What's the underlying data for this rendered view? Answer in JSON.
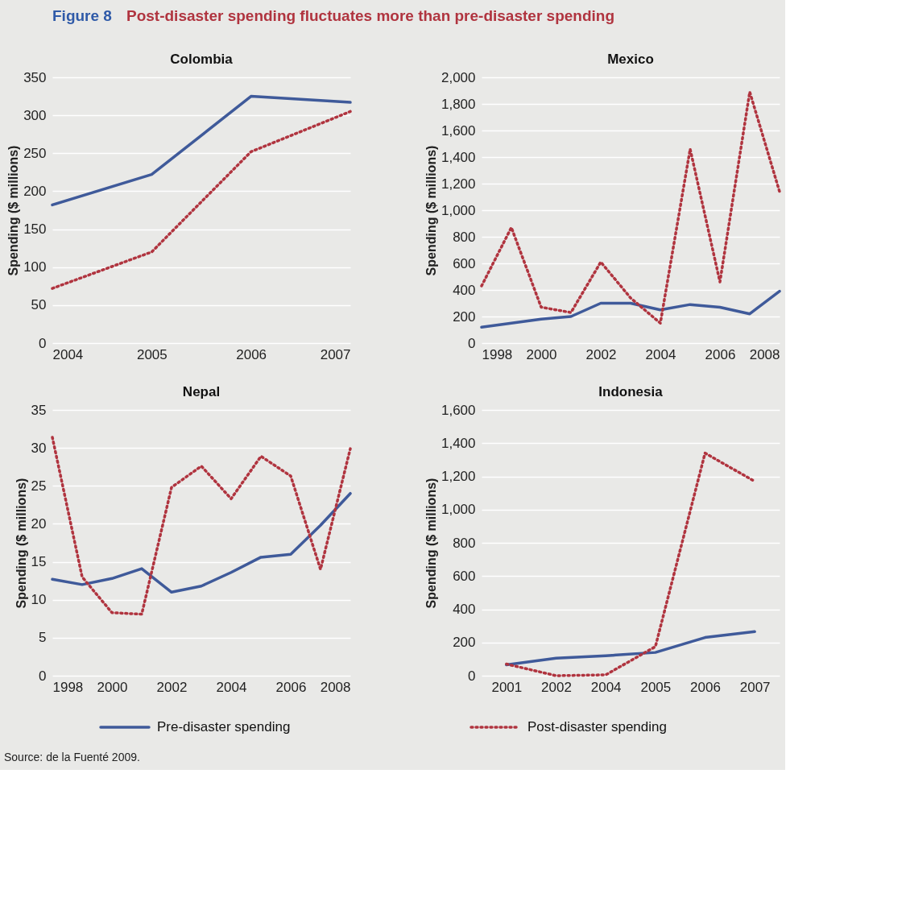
{
  "chart_data": [
    {
      "type": "other",
      "title": "Figure 8",
      "subtitle": "Post-disaster spending fluctuates more than pre-disaster spending"
    },
    {
      "type": "line",
      "title": "Colombia",
      "ylabel": "Spending ($ millions)",
      "x": [
        2004,
        2005,
        2006,
        2007
      ],
      "xlim": [
        2004,
        2007
      ],
      "xticks": [
        2004,
        2005,
        2006,
        2007
      ],
      "ylim": [
        0,
        350
      ],
      "yticks": [
        0,
        50,
        100,
        150,
        200,
        250,
        300,
        350
      ],
      "grid": "y",
      "series": [
        {
          "color": "#3f5a9a",
          "line_style": "solid",
          "values": [
            182,
            222,
            325,
            317
          ]
        },
        {
          "color": "#b0343f",
          "line_style": "dotted",
          "values": [
            72,
            120,
            252,
            305
          ]
        }
      ]
    },
    {
      "type": "line",
      "title": "Mexico",
      "ylabel": "Spending ($ millions)",
      "x": [
        1998,
        1999,
        2000,
        2001,
        2002,
        2003,
        2004,
        2005,
        2006,
        2007,
        2008
      ],
      "xlim": [
        1998,
        2008
      ],
      "xticks": [
        1998,
        2000,
        2002,
        2004,
        2006,
        2008
      ],
      "ylim": [
        0,
        2000
      ],
      "yticks": [
        0,
        200,
        400,
        600,
        800,
        {
          "value": 1000,
          "label": "1,000"
        },
        {
          "value": 1200,
          "label": "1,200"
        },
        {
          "value": 1400,
          "label": "1,400"
        },
        {
          "value": 1600,
          "label": "1,600"
        },
        {
          "value": 1800,
          "label": "1,800"
        },
        {
          "value": 2000,
          "label": "2,000"
        }
      ],
      "grid": "y",
      "series": [
        {
          "color": "#3f5a9a",
          "line_style": "solid",
          "values": [
            120,
            150,
            180,
            200,
            300,
            300,
            250,
            290,
            270,
            220,
            390
          ]
        },
        {
          "color": "#b0343f",
          "line_style": "dotted",
          "values": [
            430,
            870,
            270,
            230,
            610,
            340,
            150,
            1460,
            460,
            1890,
            1140
          ]
        }
      ]
    },
    {
      "type": "line",
      "title": "Nepal",
      "ylabel": "Spending ($ millions)",
      "x": [
        1998,
        1999,
        2000,
        2001,
        2002,
        2003,
        2004,
        2005,
        2006,
        2007,
        2008
      ],
      "xlim": [
        1998,
        2008
      ],
      "xticks": [
        1998,
        2000,
        2002,
        2004,
        2006,
        2008
      ],
      "ylim": [
        0,
        35
      ],
      "yticks": [
        0,
        5,
        10,
        15,
        20,
        25,
        30,
        35
      ],
      "grid": "y",
      "legend": "bottom",
      "annotations": [
        "Source: de la Fuenté 2009."
      ],
      "series": [
        {
          "name": "Pre-disaster spending",
          "color": "#3f5a9a",
          "line_style": "solid",
          "values": [
            12.7,
            12,
            12.8,
            14.1,
            11,
            11.8,
            13.6,
            15.6,
            16,
            19.8,
            24
          ]
        },
        {
          "name": "Post-disaster spending",
          "color": "#b0343f",
          "line_style": "dotted",
          "values": [
            31.4,
            13,
            8.3,
            8.1,
            24.8,
            27.6,
            23.3,
            28.9,
            26.3,
            14,
            29.9
          ]
        }
      ]
    },
    {
      "type": "line",
      "title": "Indonesia",
      "ylabel": "Spending ($ millions)",
      "categories": [
        "2001",
        "2002",
        "2004",
        "2005",
        "2006",
        "2007"
      ],
      "ylim": [
        0,
        1600
      ],
      "yticks": [
        0,
        200,
        400,
        600,
        800,
        {
          "value": 1000,
          "label": "1,000"
        },
        {
          "value": 1200,
          "label": "1,200"
        },
        {
          "value": 1400,
          "label": "1,400"
        },
        {
          "value": 1600,
          "label": "1,600"
        }
      ],
      "grid": "y",
      "series": [
        {
          "color": "#3f5a9a",
          "line_style": "solid",
          "values": [
            65,
            105,
            120,
            140,
            230,
            265
          ]
        },
        {
          "color": "#b0343f",
          "line_style": "dotted",
          "values": [
            70,
            0,
            5,
            175,
            1340,
            1170
          ]
        }
      ]
    }
  ]
}
